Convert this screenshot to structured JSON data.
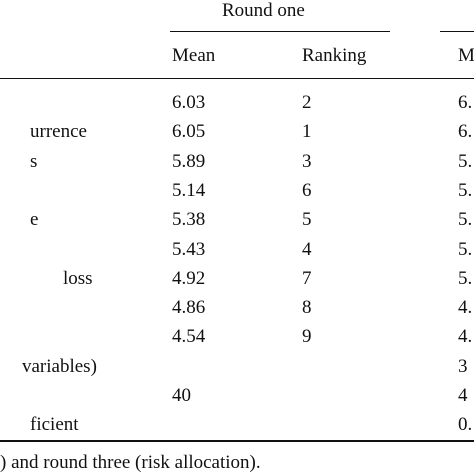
{
  "table": {
    "group_header": "Round one",
    "column_headers": [
      "Mean",
      "Ranking",
      "M"
    ],
    "rows": [
      [
        "",
        "6.03",
        "2",
        "6."
      ],
      [
        "urrence",
        "6.05",
        "1",
        "6."
      ],
      [
        "s",
        "5.89",
        "3",
        "5."
      ],
      [
        "",
        "5.14",
        "6",
        "5."
      ],
      [
        "e",
        "5.38",
        "5",
        "5."
      ],
      [
        "",
        "5.43",
        "4",
        "5."
      ],
      [
        "loss",
        "4.92",
        "7",
        "5."
      ],
      [
        "",
        "4.86",
        "8",
        "4."
      ],
      [
        "",
        "4.54",
        "9",
        "4."
      ],
      [
        "variables)",
        "",
        "",
        "3"
      ],
      [
        "",
        "40",
        "",
        "4"
      ],
      [
        "ficient",
        "",
        "",
        "0."
      ]
    ],
    "footnote": ") and round three (risk allocation)."
  }
}
